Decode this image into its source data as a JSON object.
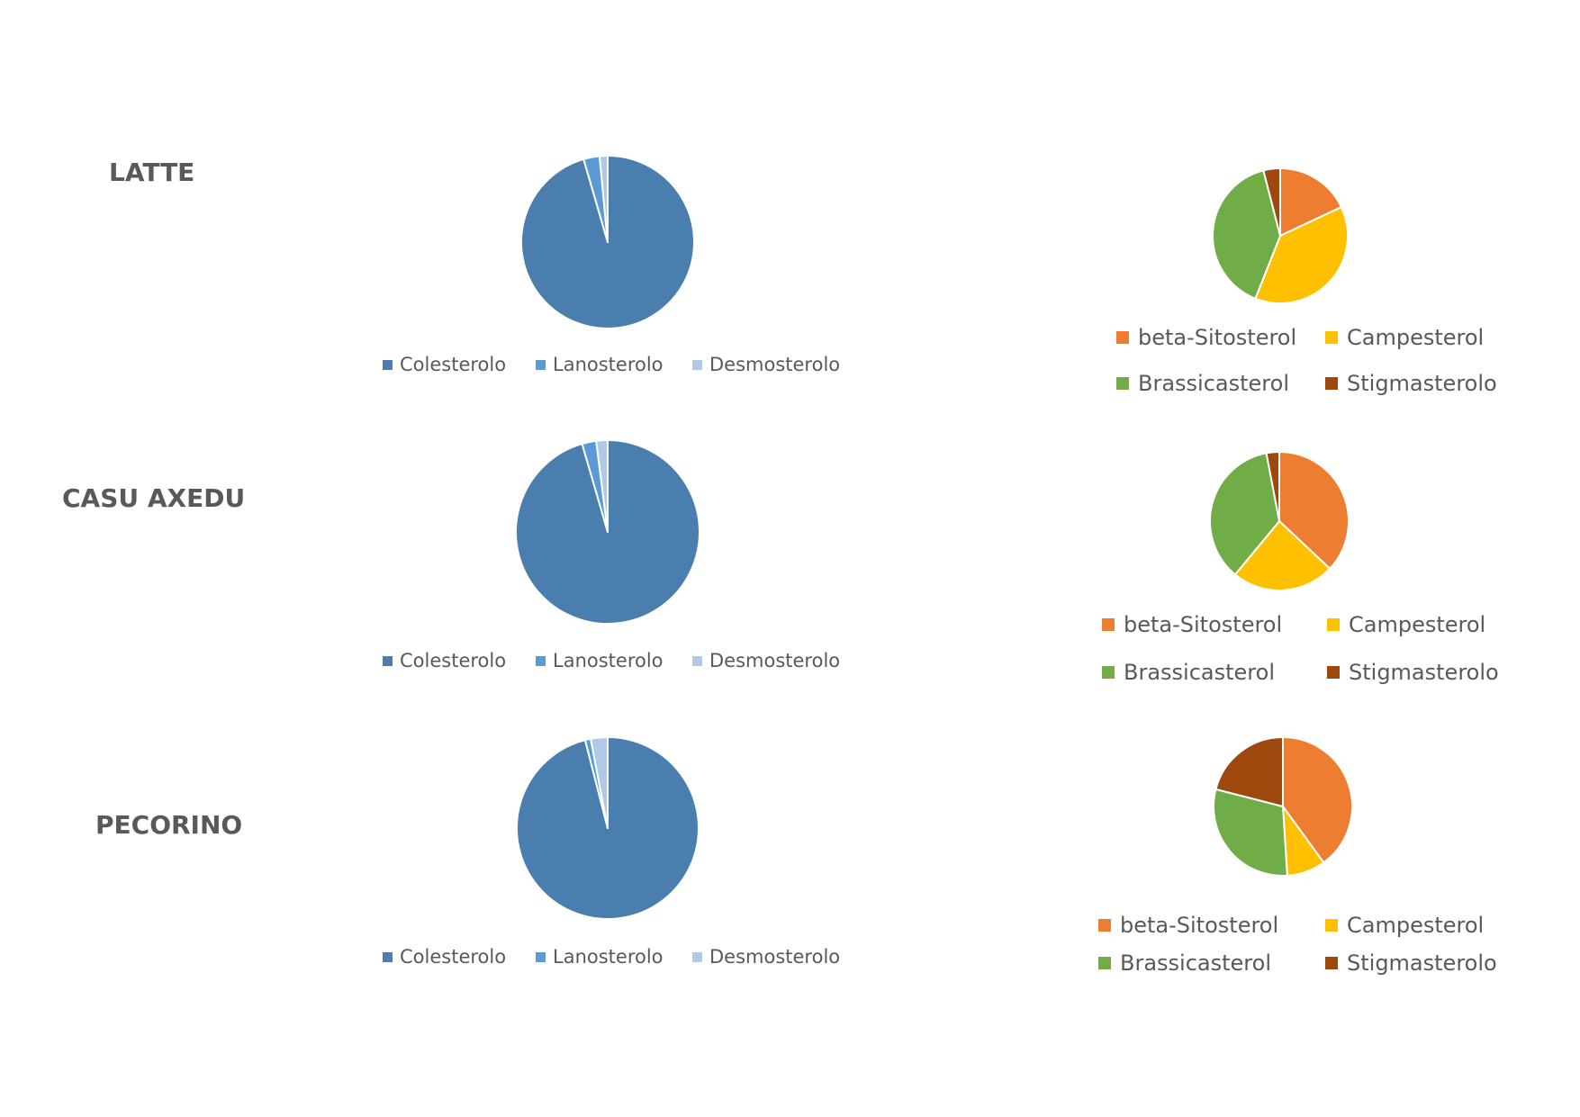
{
  "rows": [
    {
      "label": "LATTE"
    },
    {
      "label": "CASU AXEDU"
    },
    {
      "label": "PECORINO"
    }
  ],
  "chart_data": [
    {
      "type": "pie",
      "row": "LATTE",
      "legend": "bottom",
      "categories": [
        "Colesterolo",
        "Lanosterolo",
        "Desmosterolo"
      ],
      "values": [
        95.5,
        3.0,
        1.5
      ],
      "colors": [
        "#4A7EAF",
        "#5B9BD5",
        "#AFC9E6"
      ]
    },
    {
      "type": "pie",
      "row": "LATTE",
      "legend": "bottom",
      "categories": [
        "beta-Sitosterol",
        "Campesterol",
        "Brassicasterol",
        "Stigmasterolo"
      ],
      "values": [
        18,
        38,
        40,
        4
      ],
      "colors": [
        "#ED7D31",
        "#FFC000",
        "#70AD47",
        "#9E480E"
      ]
    },
    {
      "type": "pie",
      "row": "CASU AXEDU",
      "legend": "bottom",
      "categories": [
        "Colesterolo",
        "Lanosterolo",
        "Desmosterolo"
      ],
      "values": [
        95.5,
        2.5,
        2.0
      ],
      "colors": [
        "#4A7EAF",
        "#5B9BD5",
        "#AFC9E6"
      ]
    },
    {
      "type": "pie",
      "row": "CASU AXEDU",
      "legend": "bottom",
      "categories": [
        "beta-Sitosterol",
        "Campesterol",
        "Brassicasterol",
        "Stigmasterolo"
      ],
      "values": [
        37,
        24,
        36,
        3
      ],
      "colors": [
        "#ED7D31",
        "#FFC000",
        "#70AD47",
        "#9E480E"
      ]
    },
    {
      "type": "pie",
      "row": "PECORINO",
      "legend": "bottom",
      "categories": [
        "Colesterolo",
        "Lanosterolo",
        "Desmosterolo"
      ],
      "values": [
        96,
        1,
        3
      ],
      "colors": [
        "#4A7EAF",
        "#5B9BD5",
        "#AFC9E6"
      ]
    },
    {
      "type": "pie",
      "row": "PECORINO",
      "legend": "bottom",
      "categories": [
        "beta-Sitosterol",
        "Campesterol",
        "Brassicasterol",
        "Stigmasterolo"
      ],
      "values": [
        40,
        9,
        30,
        21
      ],
      "colors": [
        "#ED7D31",
        "#FFC000",
        "#70AD47",
        "#9E480E"
      ]
    }
  ]
}
